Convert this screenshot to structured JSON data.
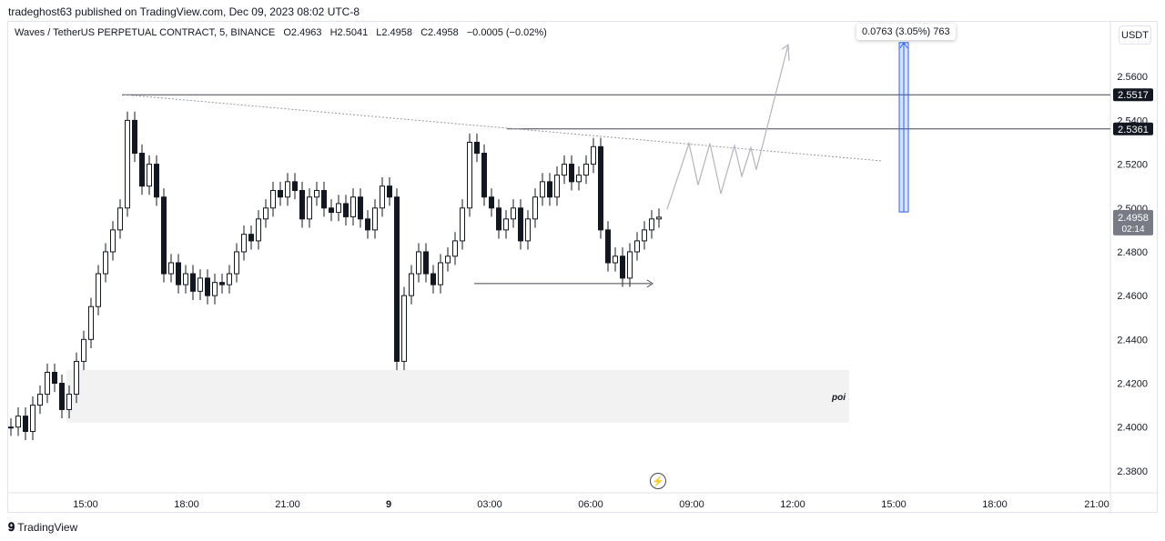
{
  "header": {
    "published_by": "tradeghost63 published on TradingView.com, Dec 09, 2023 08:02 UTC-8"
  },
  "legend": {
    "symbol": "Waves / TetherUS PERPETUAL CONTRACT, 5, BINANCE",
    "open": "O2.4963",
    "high": "H2.5041",
    "low": "L2.4958",
    "close": "C2.4958",
    "change": "−0.0005 (−0.02%)"
  },
  "currency_button": "USDT",
  "measure_label": "0.0763 (3.05%) 763",
  "footer": {
    "logo_mark": "𝟗",
    "brand": "TradingView"
  },
  "colors": {
    "candle": "#131722",
    "grid": "#e0e3eb",
    "poi": "#f2f2f2",
    "measure": "#2962ff",
    "trend": "#9598a1"
  },
  "chart_data": {
    "type": "candlestick",
    "ylim": [
      2.37,
      2.58
    ],
    "y_ticks": [
      "2.5600",
      "2.5400",
      "2.5200",
      "2.5000",
      "2.4800",
      "2.4600",
      "2.4400",
      "2.4200",
      "2.4000",
      "2.3800"
    ],
    "x_ticks": [
      "15:00",
      "18:00",
      "21:00",
      "9",
      "03:00",
      "06:00",
      "09:00",
      "12:00",
      "15:00",
      "18:00",
      "21:00"
    ],
    "price_labels": [
      {
        "text": "2.5517",
        "value": 2.5517
      },
      {
        "text": "2.5361",
        "value": 2.5361
      }
    ],
    "current_price": {
      "text": "2.4958",
      "countdown": "02:14",
      "value": 2.4958
    },
    "annotations": [
      {
        "text": "poi",
        "y_range": [
          2.402,
          2.426
        ]
      }
    ],
    "series_close": [
      2.4,
      2.405,
      2.398,
      2.41,
      2.415,
      2.425,
      2.42,
      2.408,
      2.415,
      2.43,
      2.44,
      2.455,
      2.47,
      2.48,
      2.49,
      2.5,
      2.54,
      2.525,
      2.51,
      2.52,
      2.505,
      2.47,
      2.475,
      2.465,
      2.47,
      2.462,
      2.468,
      2.46,
      2.466,
      2.465,
      2.47,
      2.48,
      2.488,
      2.485,
      2.495,
      2.5,
      2.508,
      2.505,
      2.512,
      2.508,
      2.495,
      2.505,
      2.508,
      2.5,
      2.498,
      2.502,
      2.496,
      2.505,
      2.495,
      2.49,
      2.5,
      2.51,
      2.505,
      2.43,
      2.46,
      2.47,
      2.48,
      2.47,
      2.465,
      2.475,
      2.478,
      2.485,
      2.5,
      2.53,
      2.525,
      2.505,
      2.5,
      2.49,
      2.495,
      2.5,
      2.485,
      2.495,
      2.505,
      2.512,
      2.505,
      2.515,
      2.52,
      2.512,
      2.515,
      2.52,
      2.528,
      2.49,
      2.475,
      2.478,
      2.468,
      2.48,
      2.485,
      2.49,
      2.495,
      2.4958
    ]
  }
}
